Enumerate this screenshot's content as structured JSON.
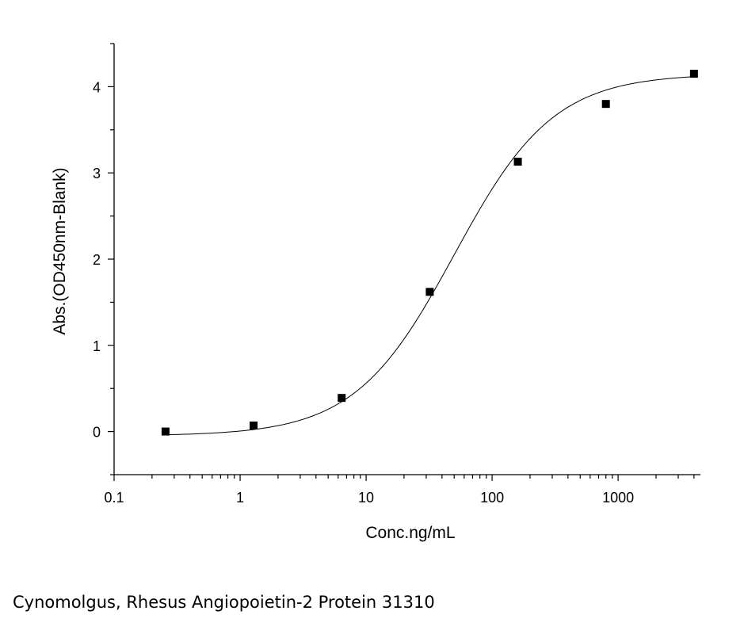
{
  "caption": "Cynomolgus, Rhesus Angiopoietin-2 Protein 31310",
  "chart_data": {
    "type": "scatter",
    "title": "",
    "xlabel": "Conc.ng/mL",
    "ylabel": "Abs.(OD450nm-Blank)",
    "xscale": "log",
    "xlim": [
      0.1,
      4500
    ],
    "ylim": [
      -0.5,
      4.5
    ],
    "x_ticks": [
      0.1,
      1,
      10,
      100,
      1000
    ],
    "x_tick_labels": [
      "0.1",
      "1",
      "10",
      "100",
      "1000"
    ],
    "y_ticks": [
      0,
      1,
      2,
      3,
      4
    ],
    "y_tick_labels": [
      "0",
      "1",
      "2",
      "3",
      "4"
    ],
    "grid": false,
    "legend": "none",
    "series": [
      {
        "x": [
          0.256,
          1.28,
          6.4,
          32,
          160,
          800,
          4000
        ],
        "y": [
          0.0,
          0.07,
          0.39,
          1.62,
          3.13,
          3.8,
          4.15
        ],
        "marker": "square",
        "color": "#000000"
      }
    ],
    "fit": {
      "type": "4PL",
      "bottom": -0.05,
      "top": 4.15,
      "ec50": 50,
      "hill": 1.1,
      "color": "#000000"
    }
  }
}
